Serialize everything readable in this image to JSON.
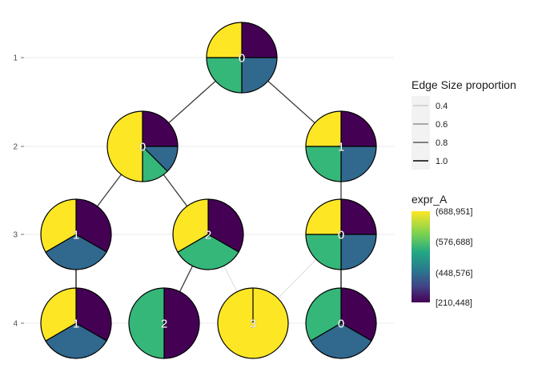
{
  "chart_data": {
    "type": "tree-pie",
    "y_axis": {
      "ticks": [
        "1",
        "2",
        "3",
        "4"
      ]
    },
    "colors": {
      "(688,951]": "#fde725",
      "(576,688]": "#35b779",
      "(448,576]": "#31688e",
      "[210,448]": "#440154"
    },
    "nodes": [
      {
        "id": "L1-0",
        "level": 1,
        "label": "0",
        "slices": [
          {
            "bin": "[210,448]",
            "value": 0.25
          },
          {
            "bin": "(448,576]",
            "value": 0.25
          },
          {
            "bin": "(576,688]",
            "value": 0.25
          },
          {
            "bin": "(688,951]",
            "value": 0.25
          }
        ]
      },
      {
        "id": "L2-0",
        "level": 2,
        "label": "0",
        "slices": [
          {
            "bin": "[210,448]",
            "value": 0.25
          },
          {
            "bin": "(448,576]",
            "value": 0.125
          },
          {
            "bin": "(576,688]",
            "value": 0.125
          },
          {
            "bin": "(688,951]",
            "value": 0.5
          }
        ]
      },
      {
        "id": "L2-1",
        "level": 2,
        "label": "1",
        "slices": [
          {
            "bin": "[210,448]",
            "value": 0.25
          },
          {
            "bin": "(448,576]",
            "value": 0.25
          },
          {
            "bin": "(576,688]",
            "value": 0.25
          },
          {
            "bin": "(688,951]",
            "value": 0.25
          }
        ]
      },
      {
        "id": "L3-1",
        "level": 3,
        "label": "1",
        "slices": [
          {
            "bin": "[210,448]",
            "value": 0.333
          },
          {
            "bin": "(448,576]",
            "value": 0.333
          },
          {
            "bin": "(688,951]",
            "value": 0.334
          }
        ]
      },
      {
        "id": "L3-2",
        "level": 3,
        "label": "2",
        "slices": [
          {
            "bin": "[210,448]",
            "value": 0.333
          },
          {
            "bin": "(576,688]",
            "value": 0.333
          },
          {
            "bin": "(688,951]",
            "value": 0.334
          }
        ]
      },
      {
        "id": "L3-0",
        "level": 3,
        "label": "0",
        "slices": [
          {
            "bin": "[210,448]",
            "value": 0.25
          },
          {
            "bin": "(448,576]",
            "value": 0.25
          },
          {
            "bin": "(576,688]",
            "value": 0.25
          },
          {
            "bin": "(688,951]",
            "value": 0.25
          }
        ]
      },
      {
        "id": "L4-1",
        "level": 4,
        "label": "1",
        "slices": [
          {
            "bin": "[210,448]",
            "value": 0.333
          },
          {
            "bin": "(448,576]",
            "value": 0.333
          },
          {
            "bin": "(688,951]",
            "value": 0.334
          }
        ]
      },
      {
        "id": "L4-2",
        "level": 4,
        "label": "2",
        "slices": [
          {
            "bin": "[210,448]",
            "value": 0.5
          },
          {
            "bin": "(576,688]",
            "value": 0.5
          }
        ]
      },
      {
        "id": "L4-3",
        "level": 4,
        "label": "3",
        "slices": [
          {
            "bin": "(688,951]",
            "value": 1.0
          }
        ]
      },
      {
        "id": "L4-0",
        "level": 4,
        "label": "0",
        "slices": [
          {
            "bin": "[210,448]",
            "value": 0.333
          },
          {
            "bin": "(448,576]",
            "value": 0.333
          },
          {
            "bin": "(576,688]",
            "value": 0.334
          }
        ]
      }
    ],
    "edges": [
      {
        "from": "L1-0",
        "to": "L2-0",
        "proportion": 0.8
      },
      {
        "from": "L1-0",
        "to": "L2-1",
        "proportion": 0.8
      },
      {
        "from": "L2-0",
        "to": "L3-1",
        "proportion": 0.8
      },
      {
        "from": "L2-0",
        "to": "L3-2",
        "proportion": 0.8
      },
      {
        "from": "L2-1",
        "to": "L3-0",
        "proportion": 0.8
      },
      {
        "from": "L3-1",
        "to": "L4-1",
        "proportion": 0.9
      },
      {
        "from": "L3-2",
        "to": "L4-2",
        "proportion": 0.8
      },
      {
        "from": "L3-2",
        "to": "L4-3",
        "proportion": 0.3
      },
      {
        "from": "L3-0",
        "to": "L4-3",
        "proportion": 0.3
      },
      {
        "from": "L3-0",
        "to": "L4-0",
        "proportion": 0.9
      }
    ],
    "legend_edge": {
      "title": "Edge Size proportion",
      "entries": [
        {
          "label": "0.4",
          "proportion": 0.4
        },
        {
          "label": "0.6",
          "proportion": 0.6
        },
        {
          "label": "0.8",
          "proportion": 0.8
        },
        {
          "label": "1.0",
          "proportion": 1.0
        }
      ]
    },
    "legend_fill": {
      "title": "expr_A",
      "entries": [
        "(688,951]",
        "(576,688]",
        "(448,576]",
        "[210,448]"
      ]
    },
    "grid": true,
    "legend_position": "right"
  }
}
